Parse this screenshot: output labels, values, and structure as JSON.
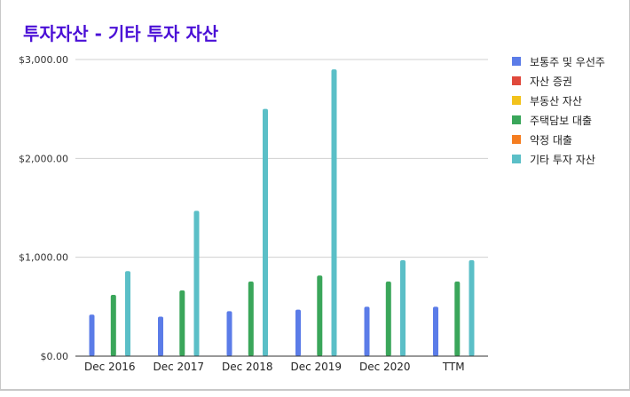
{
  "chart_data": {
    "type": "bar",
    "title": "투자자산 - 기타 투자 자산",
    "categories": [
      "Dec 2016",
      "Dec 2017",
      "Dec 2018",
      "Dec 2019",
      "Dec 2020",
      "TTM"
    ],
    "y_ticks": [
      "$0.00",
      "$1,000.00",
      "$2,000.00",
      "$3,000.00"
    ],
    "ylim": [
      0,
      3000
    ],
    "grid": true,
    "legend_position": "right",
    "series": [
      {
        "name": "보통주 및 우선주",
        "color": "#5b7ce8",
        "values": [
          420,
          400,
          455,
          470,
          500,
          500
        ]
      },
      {
        "name": "자산 증권",
        "color": "#e0493c",
        "values": [
          0,
          0,
          0,
          0,
          0,
          0
        ]
      },
      {
        "name": "부동산 자산",
        "color": "#f2c21b",
        "values": [
          0,
          0,
          0,
          0,
          0,
          0
        ]
      },
      {
        "name": "주택담보 대출",
        "color": "#3aa65a",
        "values": [
          620,
          665,
          755,
          815,
          755,
          755
        ]
      },
      {
        "name": "약정 대출",
        "color": "#f57d20",
        "values": [
          0,
          0,
          0,
          0,
          0,
          0
        ]
      },
      {
        "name": "기타 투자 자산",
        "color": "#5bbfc7",
        "values": [
          860,
          1470,
          2500,
          2900,
          970,
          970
        ]
      }
    ]
  }
}
